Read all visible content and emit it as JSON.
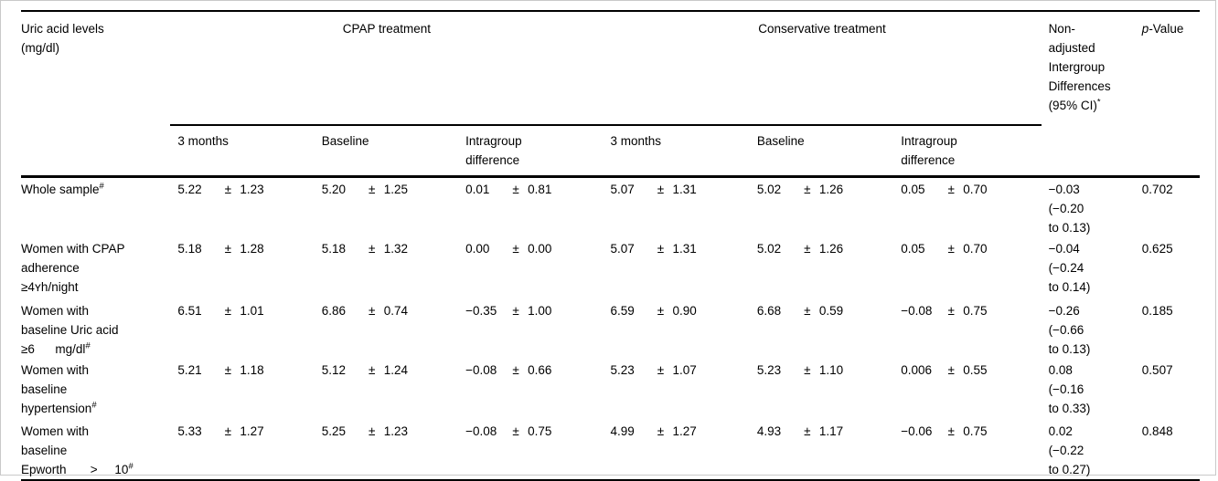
{
  "table": {
    "col1_header": "Uric acid levels\n(mg/dl)",
    "group_headers": {
      "cpap": "CPAP treatment",
      "conservative": "Conservative treatment"
    },
    "nonadjusted_header": "Non-\nadjusted\nIntergroup\nDifferences\n(95% CI)^*",
    "pvalue_header": {
      "italic": "p",
      "rest": "-Value"
    },
    "subheaders": {
      "months3": "3 months",
      "baseline": "Baseline",
      "intragroup": "Intragroup\ndifference"
    },
    "plus_minus": "±",
    "rows": [
      {
        "label": "Whole sample^#",
        "cpap_3m_mean": "5.22",
        "cpap_3m_sd": "1.23",
        "cpap_base_mean": "5.20",
        "cpap_base_sd": "1.25",
        "cpap_diff_mean": "0.01",
        "cpap_diff_sd": "0.81",
        "cons_3m_mean": "5.07",
        "cons_3m_sd": "1.31",
        "cons_base_mean": "5.02",
        "cons_base_sd": "1.26",
        "cons_diff_mean": "0.05",
        "cons_diff_sd": "0.70",
        "intergroup_ci": "−0.03\n(−0.20\nto 0.13)",
        "p_value": "0.702"
      },
      {
        "label": "Women with CPAP\nadherence\n≥4ʏh/night",
        "cpap_3m_mean": "5.18",
        "cpap_3m_sd": "1.28",
        "cpap_base_mean": "5.18",
        "cpap_base_sd": "1.32",
        "cpap_diff_mean": "0.00",
        "cpap_diff_sd": "0.00",
        "cons_3m_mean": "5.07",
        "cons_3m_sd": "1.31",
        "cons_base_mean": "5.02",
        "cons_base_sd": "1.26",
        "cons_diff_mean": "0.05",
        "cons_diff_sd": "0.70",
        "intergroup_ci": "−0.04\n(−0.24\nto 0.14)",
        "p_value": "0.625"
      },
      {
        "label": "Women with\nbaseline Uric acid\n≥6      mg/dl^#",
        "cpap_3m_mean": "6.51",
        "cpap_3m_sd": "1.01",
        "cpap_base_mean": "6.86",
        "cpap_base_sd": "0.74",
        "cpap_diff_mean": "−0.35",
        "cpap_diff_sd": "1.00",
        "cons_3m_mean": "6.59",
        "cons_3m_sd": "0.90",
        "cons_base_mean": "6.68",
        "cons_base_sd": "0.59",
        "cons_diff_mean": "−0.08",
        "cons_diff_sd": "0.75",
        "intergroup_ci": "−0.26\n(−0.66\nto 0.13)",
        "p_value": "0.185"
      },
      {
        "label": "Women with\nbaseline\nhypertension^#",
        "cpap_3m_mean": "5.21",
        "cpap_3m_sd": "1.18",
        "cpap_base_mean": "5.12",
        "cpap_base_sd": "1.24",
        "cpap_diff_mean": "−0.08",
        "cpap_diff_sd": "0.66",
        "cons_3m_mean": "5.23",
        "cons_3m_sd": "1.07",
        "cons_base_mean": "5.23",
        "cons_base_sd": "1.10",
        "cons_diff_mean": "0.006",
        "cons_diff_sd": "0.55",
        "intergroup_ci": "0.08\n(−0.16\nto 0.33)",
        "p_value": "0.507"
      },
      {
        "label": "Women with\nbaseline\nEpworth       >     10^#",
        "cpap_3m_mean": "5.33",
        "cpap_3m_sd": "1.27",
        "cpap_base_mean": "5.25",
        "cpap_base_sd": "1.23",
        "cpap_diff_mean": "−0.08",
        "cpap_diff_sd": "0.75",
        "cons_3m_mean": "4.99",
        "cons_3m_sd": "1.27",
        "cons_base_mean": "4.93",
        "cons_base_sd": "1.17",
        "cons_diff_mean": "−0.06",
        "cons_diff_sd": "0.75",
        "intergroup_ci": "0.02\n(−0.22\nto 0.27)",
        "p_value": "0.848"
      }
    ]
  }
}
